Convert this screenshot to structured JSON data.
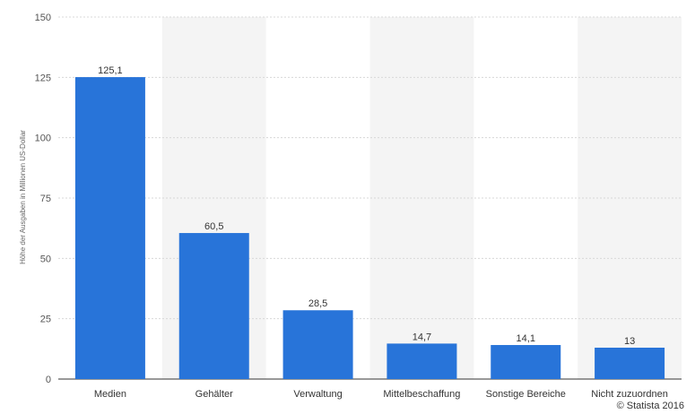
{
  "chart_data": {
    "type": "bar",
    "categories": [
      "Medien",
      "Gehälter",
      "Verwaltung",
      "Mittelbeschaffung",
      "Sonstige Bereiche",
      "Nicht zuzuordnen"
    ],
    "values": [
      125.1,
      60.5,
      28.5,
      14.7,
      14.1,
      13
    ],
    "value_labels": [
      "125,1",
      "60,5",
      "28,5",
      "14,7",
      "14,1",
      "13"
    ],
    "ylabel": "Höhe der Ausgaben in Millionen US-Dollar",
    "ylim": [
      0,
      150
    ],
    "yticks": [
      0,
      25,
      50,
      75,
      100,
      125,
      150
    ],
    "grid": true,
    "bar_color": "#2874d9",
    "band_color": "#f4f4f4"
  },
  "credit": "© Statista 2016"
}
